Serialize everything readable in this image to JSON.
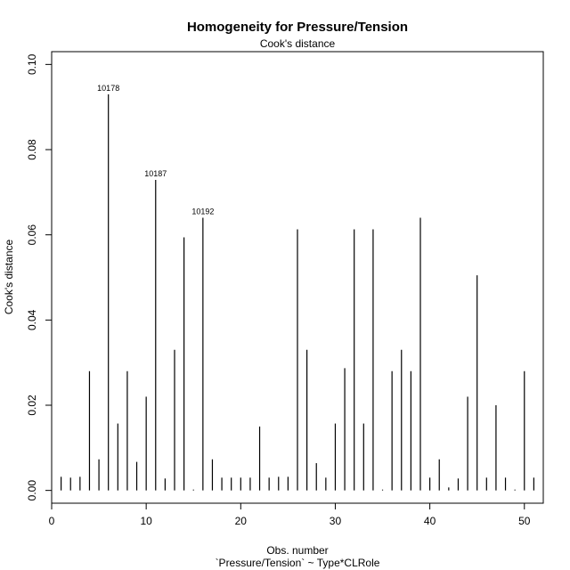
{
  "chart_data": {
    "type": "bar",
    "title": "Homogeneity for Pressure/Tension",
    "subtitle": "Cook's distance",
    "xlabel": "Obs. number",
    "xlabel2": "`Pressure/Tension` ~ Type*CLRole",
    "ylabel": "Cook's distance",
    "xlim": [
      0,
      52
    ],
    "ylim": [
      -0.003,
      0.103
    ],
    "x_ticks": [
      0,
      10,
      20,
      30,
      40,
      50
    ],
    "y_ticks": [
      "0.00",
      "0.02",
      "0.04",
      "0.06",
      "0.08",
      "0.10"
    ],
    "grid": false,
    "x": [
      1,
      2,
      3,
      4,
      5,
      6,
      7,
      8,
      9,
      10,
      11,
      12,
      13,
      14,
      15,
      16,
      17,
      18,
      19,
      20,
      21,
      22,
      23,
      24,
      25,
      26,
      27,
      28,
      29,
      30,
      31,
      32,
      33,
      34,
      35,
      36,
      37,
      38,
      39,
      40,
      41,
      42,
      43,
      44,
      45,
      46,
      47,
      48,
      49,
      50,
      51
    ],
    "values": [
      0.0032,
      0.003,
      0.0032,
      0.028,
      0.0073,
      0.093,
      0.0157,
      0.028,
      0.0067,
      0.022,
      0.0729,
      0.0028,
      0.033,
      0.0594,
      0.0002,
      0.064,
      0.0073,
      0.003,
      0.003,
      0.003,
      0.003,
      0.015,
      0.003,
      0.0032,
      0.0032,
      0.0613,
      0.033,
      0.0064,
      0.003,
      0.0157,
      0.0287,
      0.0613,
      0.0157,
      0.0613,
      0.0002,
      0.028,
      0.033,
      0.028,
      0.064,
      0.003,
      0.0073,
      0.0007,
      0.0028,
      0.022,
      0.0505,
      0.003,
      0.02,
      0.003,
      0.0002,
      0.028,
      0.003
    ],
    "annotations": [
      {
        "x": 6,
        "label": "10178"
      },
      {
        "x": 11,
        "label": "10187"
      },
      {
        "x": 16,
        "label": "10192"
      }
    ]
  }
}
